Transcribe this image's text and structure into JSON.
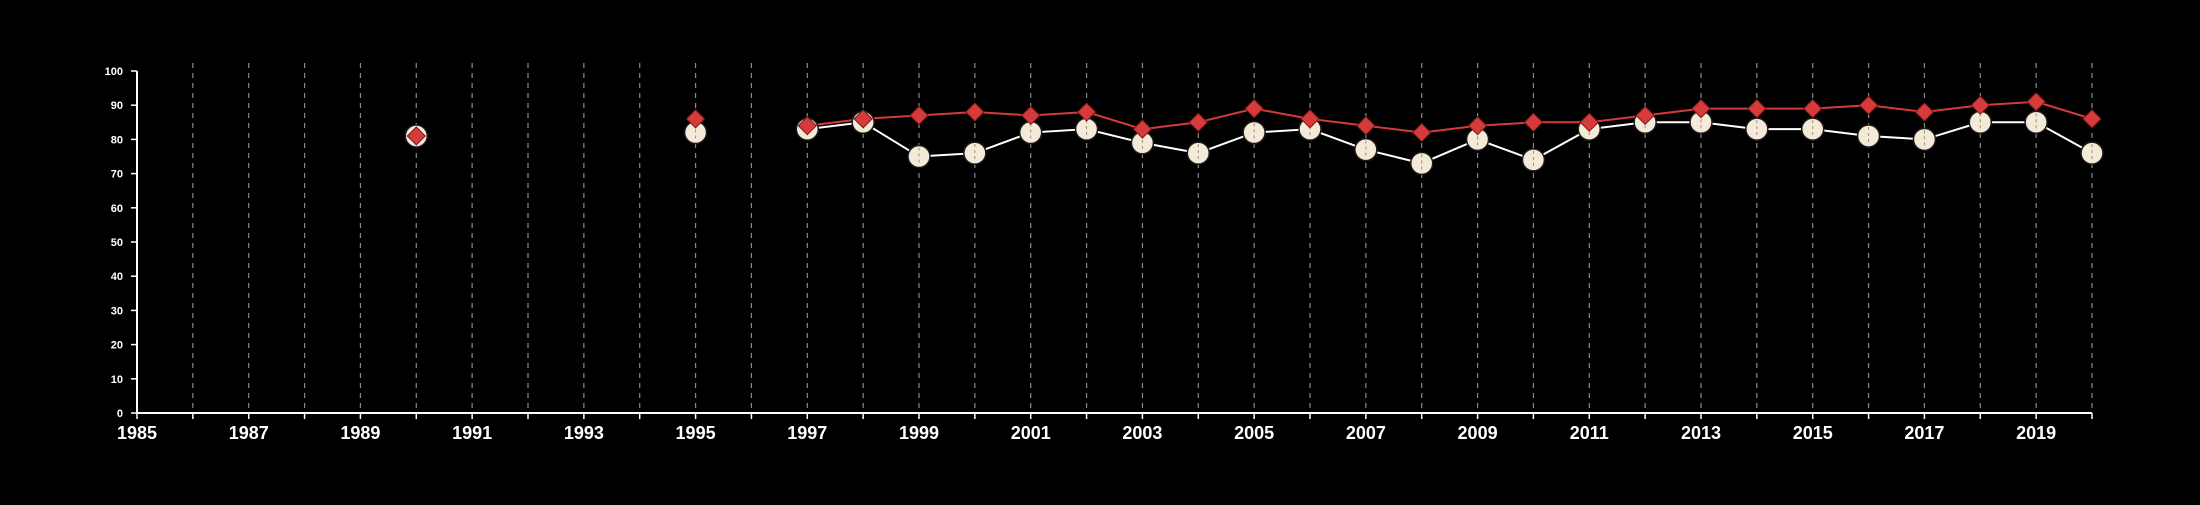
{
  "chart_data": {
    "type": "line",
    "title": "",
    "xlabel": "",
    "ylabel": "",
    "xlim": [
      1985,
      2020
    ],
    "ylim": [
      0,
      100
    ],
    "x_ticks": [
      "1985",
      "1987",
      "1989",
      "1991",
      "1993",
      "1995",
      "1997",
      "1999",
      "2001",
      "2003",
      "2005",
      "2007",
      "2009",
      "2011",
      "2013",
      "2015",
      "2017",
      "2019"
    ],
    "y_ticks": [
      "0",
      "10",
      "20",
      "30",
      "40",
      "50",
      "60",
      "70",
      "80",
      "90",
      "100"
    ],
    "grid": "vertical dashed at each year",
    "legend": "none",
    "background": "#000000",
    "series": [
      {
        "marker": "circle",
        "color": "#f5ead8",
        "line_color": "#ffffff",
        "points": [
          {
            "x": 1990,
            "y": 81
          },
          {
            "x": 1995,
            "y": 82
          },
          {
            "x": 1997,
            "y": 83
          },
          {
            "x": 1998,
            "y": 85
          },
          {
            "x": 1999,
            "y": 75
          },
          {
            "x": 2000,
            "y": 76
          },
          {
            "x": 2001,
            "y": 82
          },
          {
            "x": 2002,
            "y": 83
          },
          {
            "x": 2003,
            "y": 79
          },
          {
            "x": 2004,
            "y": 76
          },
          {
            "x": 2005,
            "y": 82
          },
          {
            "x": 2006,
            "y": 83
          },
          {
            "x": 2007,
            "y": 77
          },
          {
            "x": 2008,
            "y": 73
          },
          {
            "x": 2009,
            "y": 80
          },
          {
            "x": 2010,
            "y": 74
          },
          {
            "x": 2011,
            "y": 83
          },
          {
            "x": 2012,
            "y": 85
          },
          {
            "x": 2013,
            "y": 85
          },
          {
            "x": 2014,
            "y": 83
          },
          {
            "x": 2015,
            "y": 83
          },
          {
            "x": 2016,
            "y": 81
          },
          {
            "x": 2017,
            "y": 80
          },
          {
            "x": 2018,
            "y": 85
          },
          {
            "x": 2019,
            "y": 85
          },
          {
            "x": 2020,
            "y": 76
          }
        ]
      },
      {
        "marker": "diamond",
        "color": "#d63a3a",
        "line_color": "#d63a3a",
        "points": [
          {
            "x": 1990,
            "y": 81
          },
          {
            "x": 1995,
            "y": 86
          },
          {
            "x": 1997,
            "y": 84
          },
          {
            "x": 1998,
            "y": 86
          },
          {
            "x": 1999,
            "y": 87
          },
          {
            "x": 2000,
            "y": 88
          },
          {
            "x": 2001,
            "y": 87
          },
          {
            "x": 2002,
            "y": 88
          },
          {
            "x": 2003,
            "y": 83
          },
          {
            "x": 2004,
            "y": 85
          },
          {
            "x": 2005,
            "y": 89
          },
          {
            "x": 2006,
            "y": 86
          },
          {
            "x": 2007,
            "y": 84
          },
          {
            "x": 2008,
            "y": 82
          },
          {
            "x": 2009,
            "y": 84
          },
          {
            "x": 2010,
            "y": 85
          },
          {
            "x": 2011,
            "y": 85
          },
          {
            "x": 2012,
            "y": 87
          },
          {
            "x": 2013,
            "y": 89
          },
          {
            "x": 2014,
            "y": 89
          },
          {
            "x": 2015,
            "y": 89
          },
          {
            "x": 2016,
            "y": 90
          },
          {
            "x": 2017,
            "y": 88
          },
          {
            "x": 2018,
            "y": 90
          },
          {
            "x": 2019,
            "y": 91
          },
          {
            "x": 2020,
            "y": 86
          }
        ]
      }
    ]
  }
}
